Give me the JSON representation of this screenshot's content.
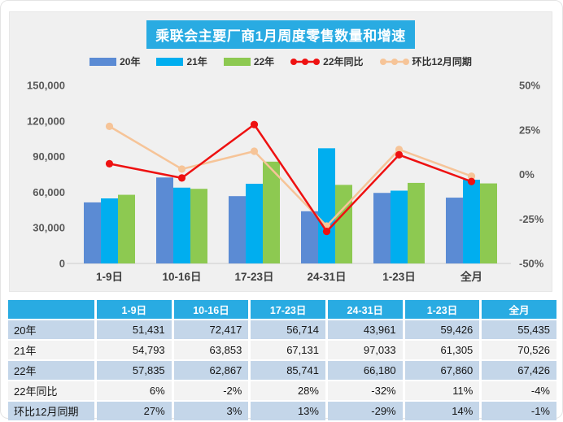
{
  "title": "乘联会主要厂商1月周度零售数量和增速",
  "colors": {
    "accent": "#29abe2",
    "bar_2020": "#5b8bd4",
    "bar_2021": "#00aeef",
    "bar_2022": "#8dc951",
    "line_yoy": "#ee1111",
    "line_mom": "#f6c498",
    "panel_bg": "#f0f0f0",
    "axis_text": "#595959",
    "category_text": "#404040",
    "table_row_blue": "#c4d6e9",
    "table_row_light": "#f3f3f3"
  },
  "chart_data": {
    "type": "bar",
    "subtype": "grouped bars with dual-axis percentage lines",
    "title": "乘联会主要厂商1月周度零售数量和增速",
    "categories": [
      "1-9日",
      "10-16日",
      "17-23日",
      "24-31日",
      "1-23日",
      "全月"
    ],
    "series": [
      {
        "name": "20年",
        "kind": "bar",
        "axis": "left",
        "color_key": "bar_2020",
        "values": [
          51431,
          72417,
          56714,
          43961,
          59426,
          55435
        ]
      },
      {
        "name": "21年",
        "kind": "bar",
        "axis": "left",
        "color_key": "bar_2021",
        "values": [
          54793,
          63853,
          67131,
          97033,
          61305,
          70526
        ]
      },
      {
        "name": "22年",
        "kind": "bar",
        "axis": "left",
        "color_key": "bar_2022",
        "values": [
          57835,
          62867,
          85741,
          66180,
          67860,
          67426
        ]
      },
      {
        "name": "22年同比",
        "kind": "line",
        "axis": "right",
        "color_key": "line_yoy",
        "values": [
          6,
          -2,
          28,
          -32,
          11,
          -4
        ]
      },
      {
        "name": "环比12月同期",
        "kind": "line",
        "axis": "right",
        "color_key": "line_mom",
        "values": [
          27,
          3,
          13,
          -29,
          14,
          -1
        ]
      }
    ],
    "left_axis": {
      "min": 0,
      "max": 150000,
      "ticks": [
        "150,000",
        "120,000",
        "90,000",
        "60,000",
        "30,000",
        "0"
      ]
    },
    "right_axis": {
      "min": -50,
      "max": 50,
      "ticks": [
        "50%",
        "25%",
        "0%",
        "-25%",
        "-50%"
      ]
    },
    "grid": false,
    "legend_position": "top"
  },
  "table": {
    "header": [
      "",
      "1-9日",
      "10-16日",
      "17-23日",
      "24-31日",
      "1-23日",
      "全月"
    ],
    "rows": [
      {
        "label": "20年",
        "cells": [
          "51,431",
          "72,417",
          "56,714",
          "43,961",
          "59,426",
          "55,435"
        ]
      },
      {
        "label": "21年",
        "cells": [
          "54,793",
          "63,853",
          "67,131",
          "97,033",
          "61,305",
          "70,526"
        ]
      },
      {
        "label": "22年",
        "cells": [
          "57,835",
          "62,867",
          "85,741",
          "66,180",
          "67,860",
          "67,426"
        ]
      },
      {
        "label": "22年同比",
        "cells": [
          "6%",
          "-2%",
          "28%",
          "-32%",
          "11%",
          "-4%"
        ]
      },
      {
        "label": "环比12月同期",
        "cells": [
          "27%",
          "3%",
          "13%",
          "-29%",
          "14%",
          "-1%"
        ]
      }
    ]
  }
}
